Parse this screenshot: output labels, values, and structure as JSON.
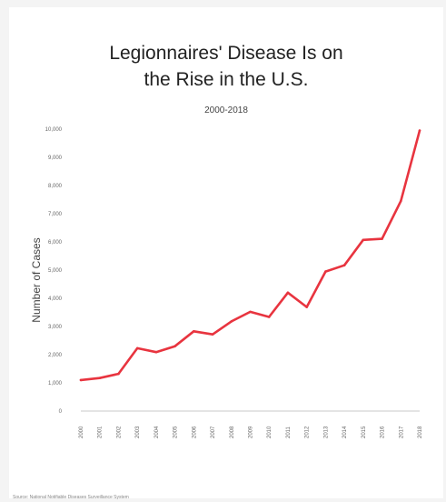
{
  "chart_data": {
    "type": "line",
    "title": "Legionnaires' Disease Is on the Rise in the U.S.",
    "title_lines": [
      "Legionnaires' Disease Is on",
      "the Rise in the U.S."
    ],
    "subtitle": "2000-2018",
    "xlabel": "",
    "ylabel": "Number of Cases",
    "source": "Source: National Notifiable Diseases Surveillance System",
    "x": [
      "2000",
      "2001",
      "2002",
      "2003",
      "2004",
      "2005",
      "2006",
      "2007",
      "2008",
      "2009",
      "2010",
      "2011",
      "2012",
      "2013",
      "2014",
      "2015",
      "2016",
      "2017",
      "2018"
    ],
    "y_ticks": [
      0,
      1000,
      2000,
      3000,
      4000,
      5000,
      6000,
      7000,
      8000,
      9000,
      10000
    ],
    "y_tick_labels": [
      "0",
      "1,000",
      "2,000",
      "3,000",
      "4,000",
      "5,000",
      "6,000",
      "7,000",
      "8,000",
      "9,000",
      "10,000"
    ],
    "ylim": [
      0,
      10000
    ],
    "grid": false,
    "series": [
      {
        "values": [
          1100,
          1170,
          1320,
          2230,
          2090,
          2300,
          2830,
          2720,
          3180,
          3520,
          3340,
          4200,
          3690,
          4950,
          5170,
          6070,
          6110,
          7450,
          9950
        ],
        "color": "#e8343f"
      }
    ]
  }
}
